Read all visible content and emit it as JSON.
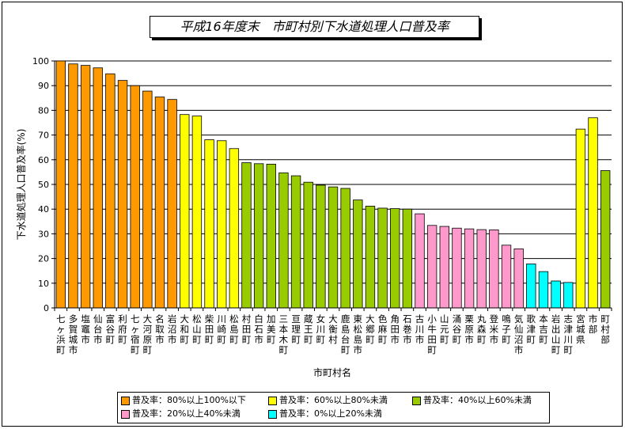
{
  "chart_data": {
    "type": "bar",
    "title": "平成16年度末　市町村別下水道処理人口普及率",
    "xlabel": "市町村名",
    "ylabel": "下水道処理人口普及率(%)",
    "ylim": [
      0,
      100
    ],
    "yticks": [
      0,
      10,
      20,
      30,
      40,
      50,
      60,
      70,
      80,
      90,
      100
    ],
    "grid": true,
    "legend_position": "bottom",
    "categories": [
      "七ヶ浜町",
      "多賀城市",
      "塩竈市",
      "仙台市",
      "富谷町",
      "利府町",
      "七ヶ宿町",
      "大河原町",
      "名取市",
      "岩沼市",
      "大和町",
      "松山町",
      "柴田町",
      "川崎町",
      "松島町",
      "村田町",
      "白石市",
      "加美町",
      "三本木町",
      "亘理町",
      "蔵王町",
      "女川町",
      "大衡村",
      "鹿島台町",
      "東松島市",
      "大郷町",
      "色麻町",
      "角田市",
      "石巻市",
      "古川市",
      "小牛田町",
      "山元町",
      "涌谷町",
      "栗原市",
      "丸森町",
      "登米市",
      "鳴子町",
      "気仙沼市",
      "歌津町",
      "本吉町",
      "岩出山町",
      "志津川町",
      "宮城県",
      "市部",
      "町村部"
    ],
    "labels": [
      "七ヶ浜町",
      "多賀城市",
      "塩竈市",
      "仙台市",
      "富谷町",
      "利府町",
      "七ヶ宿町",
      "大河原町",
      "名取市",
      "岩沼市",
      "大和町",
      "松山町",
      "柴田町",
      "川崎町",
      "松島町",
      "村田町",
      "白石市",
      "加美町",
      "三本木町",
      "亘理町",
      "蔵王町",
      "女川町",
      "大衡村",
      "鹿島台町",
      "東松島市",
      "大郷町",
      "色麻町",
      "角田市",
      "石巻市",
      "古川市",
      "小牛田町",
      "山元町",
      "涌谷町",
      "栗原市",
      "丸森町",
      "登米市",
      "鳴子町",
      "気仙沼市",
      "歌津町",
      "本吉町",
      "岩出山町",
      "志津川町",
      "宮城県",
      "市部",
      "町村部"
    ],
    "values": [
      100,
      98.8,
      98.2,
      97.2,
      94.8,
      92.1,
      90.0,
      87.8,
      85.4,
      84.4,
      78.3,
      77.7,
      68.1,
      67.7,
      64.5,
      58.8,
      58.4,
      58.2,
      54.7,
      53.5,
      50.9,
      49.7,
      49.0,
      48.4,
      43.7,
      41.2,
      40.4,
      40.2,
      40.0,
      38.1,
      33.4,
      33.0,
      32.3,
      32.0,
      31.7,
      31.6,
      25.4,
      23.9,
      17.8,
      14.7,
      10.9,
      10.3,
      72.4,
      77.0,
      55.6
    ],
    "bar_groups": [
      0,
      0,
      0,
      0,
      0,
      0,
      0,
      0,
      0,
      0,
      1,
      1,
      1,
      1,
      1,
      2,
      2,
      2,
      2,
      2,
      2,
      2,
      2,
      2,
      2,
      2,
      2,
      2,
      2,
      3,
      3,
      3,
      3,
      3,
      3,
      3,
      3,
      3,
      4,
      4,
      4,
      4,
      1,
      1,
      2
    ],
    "legend": [
      {
        "label": "普及率：80%以上100%以下",
        "color": "#ff9900"
      },
      {
        "label": "普及率：60%以上80%未満",
        "color": "#ffff00"
      },
      {
        "label": "普及率：40%以上60%未満",
        "color": "#99cc00"
      },
      {
        "label": "普及率：20%以上40%未満",
        "color": "#ff99cc"
      },
      {
        "label": "普及率：0%以上20%未満",
        "color": "#00ffff"
      }
    ]
  }
}
